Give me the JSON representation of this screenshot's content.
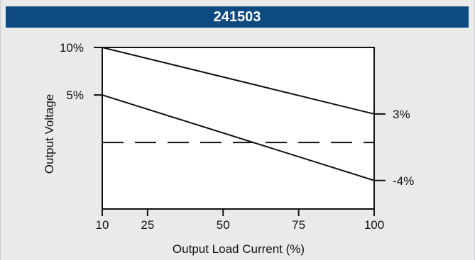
{
  "header": {
    "title": "241503"
  },
  "chart_data": {
    "type": "line",
    "title": "241503",
    "xlabel": "Output Load Current (%)",
    "ylabel": "Output Voltage",
    "x_ticks": [
      "10",
      "25",
      "50",
      "75",
      "100"
    ],
    "y_ticks": [
      "10%",
      "5%"
    ],
    "xlim": [
      10,
      100
    ],
    "ylim": [
      -7,
      10
    ],
    "grid": false,
    "series": [
      {
        "x": [
          10,
          100
        ],
        "y": [
          10,
          3
        ],
        "end_label": "3%",
        "style": "solid"
      },
      {
        "x": [
          10,
          100
        ],
        "y": [
          5,
          -4
        ],
        "end_label": "-4%",
        "style": "solid"
      },
      {
        "x": [
          10,
          100
        ],
        "y": [
          0,
          0
        ],
        "style": "dashed"
      }
    ],
    "colors": {
      "header": "#0e4a82",
      "panel": "#eaeaea",
      "plot": "#ffffff",
      "line": "#111111"
    }
  }
}
